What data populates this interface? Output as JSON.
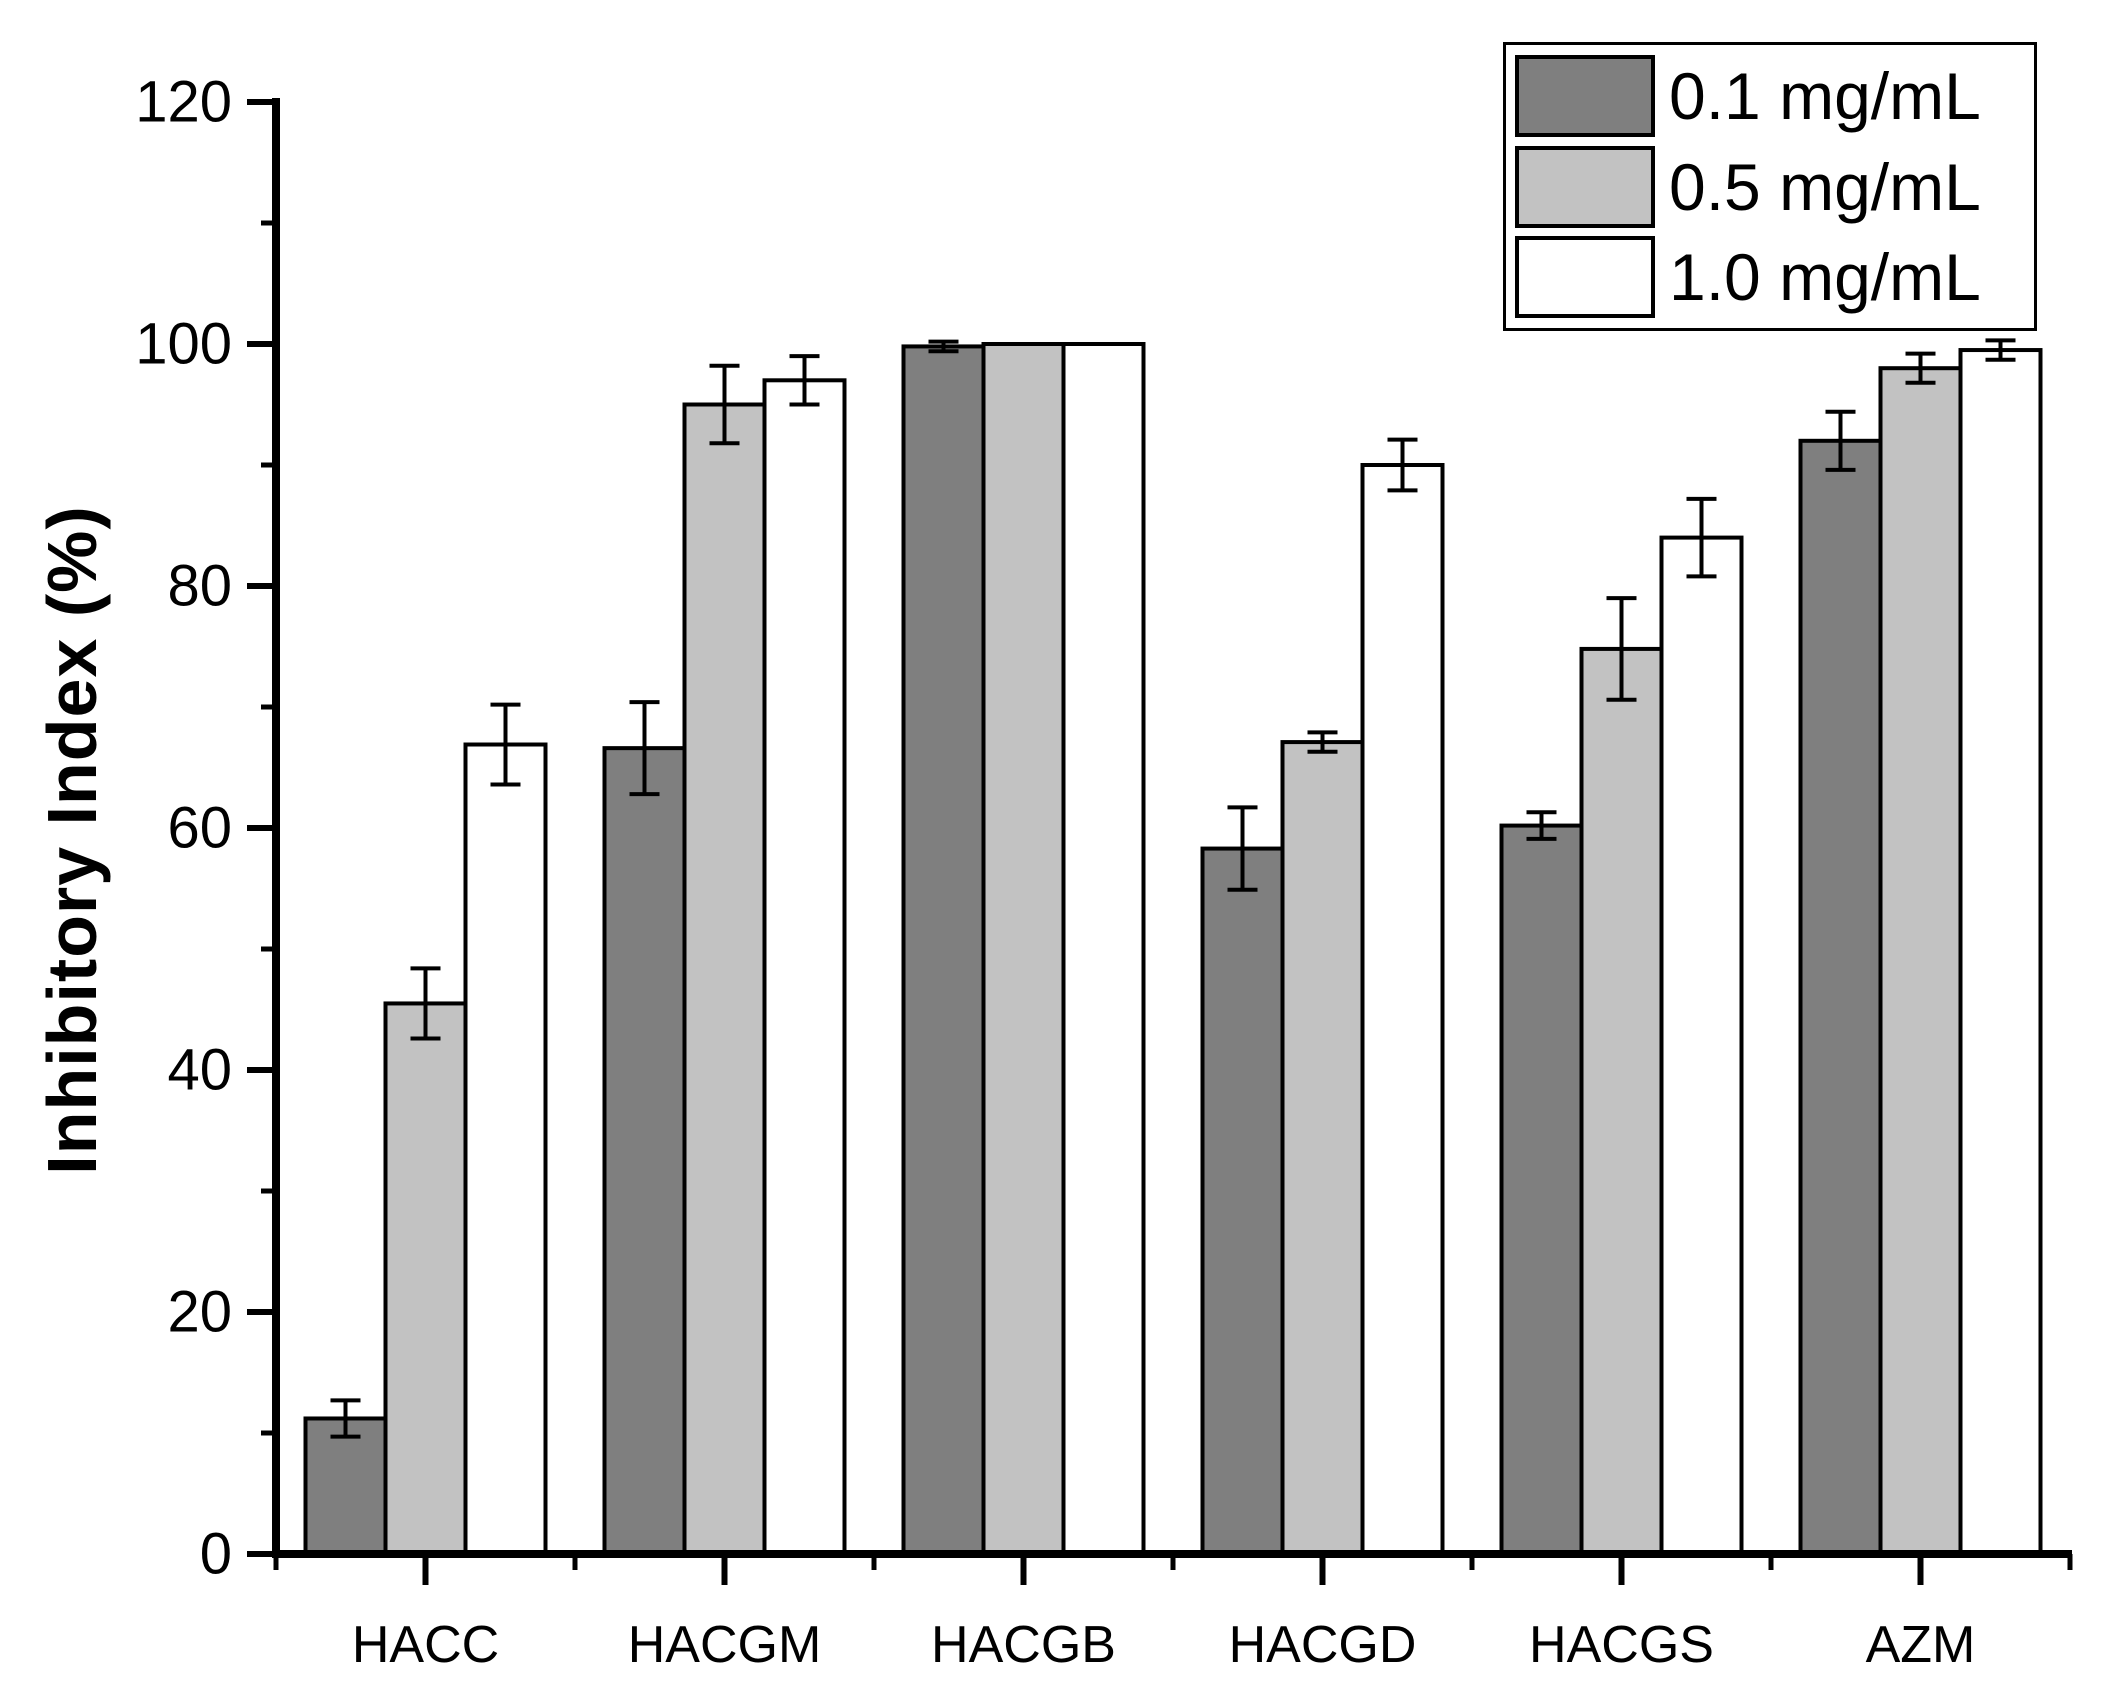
{
  "figure": {
    "background": "#ffffff",
    "text_color": "#000000"
  },
  "chart_data": {
    "type": "bar",
    "title": "",
    "xlabel": "",
    "ylabel": "Inhibitory Index (%)",
    "categories": [
      "HACC",
      "HACGM",
      "HACGB",
      "HACGD",
      "HACGS",
      "AZM"
    ],
    "series": [
      {
        "name": "0.1 mg/mL",
        "fill": "#7f7f7f",
        "values": [
          11.2,
          66.6,
          99.8,
          58.3,
          60.2,
          92.0
        ],
        "errors": [
          1.5,
          3.8,
          0.4,
          3.4,
          1.1,
          2.4
        ]
      },
      {
        "name": "0.5 mg/mL",
        "fill": "#c2c2c2",
        "values": [
          45.5,
          95.0,
          100.0,
          67.1,
          74.8,
          98.0
        ],
        "errors": [
          2.9,
          3.2,
          0,
          0.8,
          4.2,
          1.2
        ]
      },
      {
        "name": "1.0 mg/mL",
        "fill": "#ffffff",
        "values": [
          66.9,
          97.0,
          100.0,
          90.0,
          84.0,
          99.5
        ],
        "errors": [
          3.3,
          2.0,
          0,
          2.1,
          3.2,
          0.8
        ]
      }
    ],
    "ylim": [
      0,
      120
    ],
    "ytick_step": 20,
    "yminor_step": 10,
    "ytick_labels": [
      "0",
      "20",
      "40",
      "60",
      "80",
      "100",
      "120"
    ],
    "grid": false,
    "legend_position": "top-right",
    "bar_border_color": "#000000",
    "error_bar_color": "#000000",
    "axis_color": "#000000"
  }
}
